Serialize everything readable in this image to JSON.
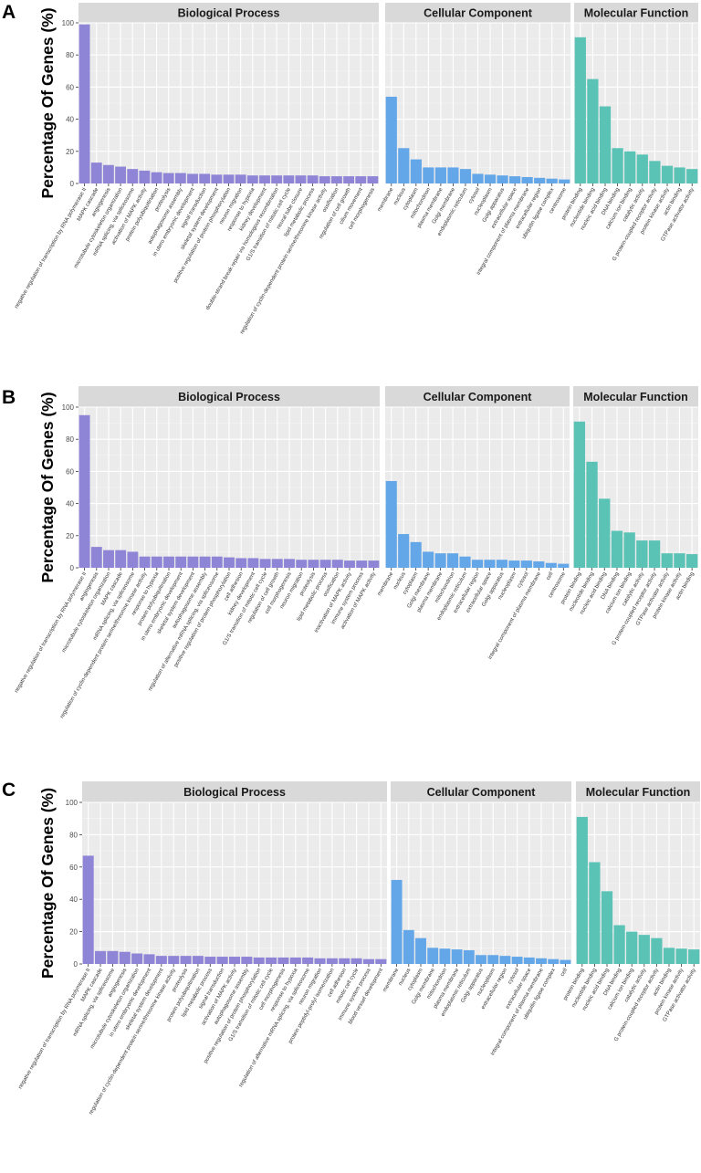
{
  "figure": {
    "ylabel": "Percentage Of Genes (%)",
    "facet_colors": {
      "bp": "#8f85d6",
      "cc": "#64a7e8",
      "mf": "#5bc3b6"
    },
    "panel_bg": "#ebebeb",
    "strip_bg": "#d9d9d9"
  },
  "chart_data": [
    {
      "type": "bar",
      "panel_label": "A",
      "ylabel": "Percentage Of Genes (%)",
      "ylim": [
        0,
        100
      ],
      "yticks": [
        0,
        20,
        40,
        60,
        80,
        100
      ],
      "facets": [
        {
          "title": "Biological Process",
          "color": "#8f85d6",
          "categories": [
            "negative regulation of transcription by RNA polymerase II",
            "MAPK cascade",
            "angiogenesis",
            "microtubule cytoskeleton organization",
            "mRNA splicing, via spliceosome",
            "activation of MAPK activity",
            "protein polyubiquitination",
            "proteolysis",
            "autophagosome assembly",
            "in utero embryonic development",
            "signal transduction",
            "skeletal system development",
            "positive regulation of protein phosphorylation",
            "neuron migration",
            "response to hypoxia",
            "kidney development",
            "double-strand break repair via homologous recombination",
            "G1/S transition of mitotic cell cycle",
            "neural tube closure",
            "lipid metabolic process",
            "regulation of cyclin-dependent protein serine/threonine kinase activity",
            "ossification",
            "regulation of cell growth",
            "cilium movement",
            "cell morphogenesis"
          ],
          "values": [
            99,
            13,
            11.5,
            10.5,
            9,
            8,
            7,
            6.5,
            6.5,
            6,
            6,
            5.5,
            5.5,
            5.5,
            5,
            5,
            5,
            5,
            5,
            5,
            4.5,
            4.5,
            4.5,
            4.5,
            4.5
          ]
        },
        {
          "title": "Cellular Component",
          "color": "#64a7e8",
          "categories": [
            "membrane",
            "nucleus",
            "cytoplasm",
            "mitochondrion",
            "plasma membrane",
            "Golgi membrane",
            "endoplasmic reticulum",
            "cytosol",
            "nucleoplasm",
            "Golgi apparatus",
            "extracellular space",
            "integral component of plasma membrane",
            "extracellular region",
            "ubiquitin ligase complex",
            "centrosome"
          ],
          "values": [
            54,
            22,
            15,
            10,
            10,
            10,
            9,
            6,
            5.5,
            5,
            4.5,
            4,
            3.5,
            3,
            2.5
          ]
        },
        {
          "title": "Molecular Function",
          "color": "#5bc3b6",
          "categories": [
            "protein binding",
            "nucleotide binding",
            "nucleic acid binding",
            "DNA binding",
            "calcium ion binding",
            "catalytic activity",
            "G protein-coupled receptor activity",
            "protein kinase activity",
            "actin binding",
            "GTPase activator activity"
          ],
          "values": [
            91,
            65,
            48,
            22,
            20,
            18,
            14,
            11,
            10,
            9
          ]
        }
      ]
    },
    {
      "type": "bar",
      "panel_label": "B",
      "ylabel": "Percentage Of Genes (%)",
      "ylim": [
        0,
        100
      ],
      "yticks": [
        0,
        20,
        40,
        60,
        80,
        100
      ],
      "facets": [
        {
          "title": "Biological Process",
          "color": "#8f85d6",
          "categories": [
            "negative regulation of transcription by RNA polymerase II",
            "angiogenesis",
            "microtubule cytoskeleton organization",
            "MAPK cascade",
            "mRNA splicing, via spliceosome",
            "regulation of cyclin-dependent protein serine/threonine kinase activity",
            "response to hypoxia",
            "protein polyubiquitination",
            "in utero embryonic development",
            "skeletal system development",
            "autophagosome assembly",
            "regulation of alternative mRNA splicing, via spliceosome",
            "positive regulation of protein phosphorylation",
            "cell adhesion",
            "kidney development",
            "G1/S transition of mitotic cell cycle",
            "regulation of cell growth",
            "cell morphogenesis",
            "neuron migration",
            "proteolysis",
            "lipid metabolic process",
            "ossification",
            "inactivation of MAPK activity",
            "immune system process",
            "activation of MAPK activity"
          ],
          "values": [
            95,
            13,
            11,
            11,
            10,
            7,
            7,
            7,
            7,
            7,
            7,
            7,
            6.5,
            6,
            6,
            5.5,
            5.5,
            5.5,
            5,
            5,
            5,
            5,
            4.5,
            4.5,
            4.5
          ]
        },
        {
          "title": "Cellular Component",
          "color": "#64a7e8",
          "categories": [
            "membrane",
            "nucleus",
            "cytoplasm",
            "Golgi membrane",
            "plasma membrane",
            "mitochondrion",
            "endoplasmic reticulum",
            "extracellular region",
            "extracellular space",
            "Golgi apparatus",
            "nucleoplasm",
            "cytosol",
            "integral component of plasma membrane",
            "cell",
            "centrosome"
          ],
          "values": [
            54,
            21,
            16,
            10,
            9,
            9,
            7,
            5,
            5,
            5,
            4.5,
            4.5,
            4,
            3,
            2.5
          ]
        },
        {
          "title": "Molecular Function",
          "color": "#5bc3b6",
          "categories": [
            "protein binding",
            "nucleotide binding",
            "nucleic acid binding",
            "DNA binding",
            "calcium ion binding",
            "catalytic activity",
            "G protein-coupled receptor activity",
            "GTPase activator activity",
            "protein kinase activity",
            "actin binding"
          ],
          "values": [
            91,
            66,
            43,
            23,
            22,
            17,
            17,
            9,
            9,
            8.5
          ]
        }
      ]
    },
    {
      "type": "bar",
      "panel_label": "C",
      "ylabel": "Percentage Of Genes (%)",
      "ylim": [
        0,
        100
      ],
      "yticks": [
        0,
        20,
        40,
        60,
        80,
        100
      ],
      "facets": [
        {
          "title": "Biological Process",
          "color": "#8f85d6",
          "categories": [
            "negative regulation of transcription by RNA polymerase II",
            "MAPK cascade",
            "mRNA splicing, via spliceosome",
            "angiogenesis",
            "microtubule cytoskeleton organization",
            "in utero embryonic development",
            "skeletal system development",
            "regulation of cyclin-dependent protein serine/threonine kinase activity",
            "proteolysis",
            "protein polyubiquitination",
            "lipid metabolic process",
            "signal transduction",
            "activation of MAPK activity",
            "autophagosome assembly",
            "positive regulation of protein phosphorylation",
            "G1/S transition of mitotic cell cycle",
            "cell morphogenesis",
            "response to hypoxia",
            "regulation of alternative mRNA splicing, via spliceosome",
            "neuron migration",
            "protein peptidyl-prolyl isomerization",
            "cell adhesion",
            "mitotic cell cycle",
            "immune system process",
            "blood vessel development"
          ],
          "values": [
            67,
            8,
            8,
            7.5,
            6.5,
            6,
            5,
            5,
            5,
            5,
            4.5,
            4.5,
            4.5,
            4.5,
            4,
            4,
            4,
            4,
            4,
            3.5,
            3.5,
            3.5,
            3.5,
            3,
            3
          ]
        },
        {
          "title": "Cellular Component",
          "color": "#64a7e8",
          "categories": [
            "membrane",
            "nucleus",
            "cytoplasm",
            "Golgi membrane",
            "mitochondrion",
            "plasma membrane",
            "endoplasmic reticulum",
            "Golgi apparatus",
            "nucleoplasm",
            "extracellular region",
            "cytosol",
            "extracellular space",
            "integral component of plasma membrane",
            "ubiquitin ligase complex",
            "cell"
          ],
          "values": [
            52,
            21,
            16,
            10,
            9.5,
            9,
            8.5,
            5.5,
            5.5,
            5,
            4.5,
            4,
            3.5,
            3,
            2.5
          ]
        },
        {
          "title": "Molecular Function",
          "color": "#5bc3b6",
          "categories": [
            "protein binding",
            "nucleotide binding",
            "nucleic acid binding",
            "DNA binding",
            "calcium ion binding",
            "catalytic activity",
            "G protein-coupled receptor activity",
            "actin binding",
            "protein kinase activity",
            "GTPase activator activity"
          ],
          "values": [
            91,
            63,
            45,
            24,
            20,
            18,
            16,
            10,
            9.5,
            9
          ]
        }
      ]
    }
  ]
}
